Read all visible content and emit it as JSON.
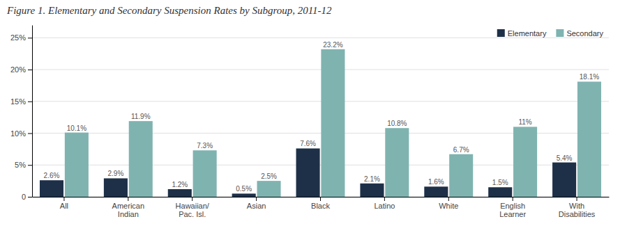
{
  "chart_data": {
    "type": "bar",
    "title": "Figure 1. Elementary and Secondary Suspension Rates by Subgroup, 2011-12",
    "categories": [
      "All",
      "American\nIndian",
      "Hawaiian/\nPac. Isl.",
      "Asian",
      "Black",
      "Latino",
      "White",
      "English\nLearner",
      "With\nDisabilities"
    ],
    "series": [
      {
        "name": "Elementary",
        "color": "#1e3048",
        "values": [
          2.6,
          2.9,
          1.2,
          0.5,
          7.6,
          2.1,
          1.6,
          1.5,
          5.4
        ],
        "value_labels": [
          "2.6%",
          "2.9%",
          "1.2%",
          "0.5%",
          "7.6%",
          "2.1%",
          "1.6%",
          "1.5%",
          "5.4%"
        ]
      },
      {
        "name": "Secondary",
        "color": "#7fb3b0",
        "values": [
          10.1,
          11.9,
          7.3,
          2.5,
          23.2,
          10.8,
          6.7,
          11.0,
          18.1
        ],
        "value_labels": [
          "10.1%",
          "11.9%",
          "7.3%",
          "2.5%",
          "23.2%",
          "10.8%",
          "6.7%",
          "11%",
          "18.1%"
        ]
      }
    ],
    "ylim": [
      0,
      27
    ],
    "yticks": [
      0,
      {
        "value": 5,
        "label": "5%"
      },
      {
        "value": 10,
        "label": "10%"
      },
      {
        "value": 15,
        "label": "15%"
      },
      {
        "value": 20,
        "label": "20%"
      },
      {
        "value": 25,
        "label": "25%"
      }
    ],
    "grid": true,
    "legend": "upper right",
    "data_labels": true
  }
}
